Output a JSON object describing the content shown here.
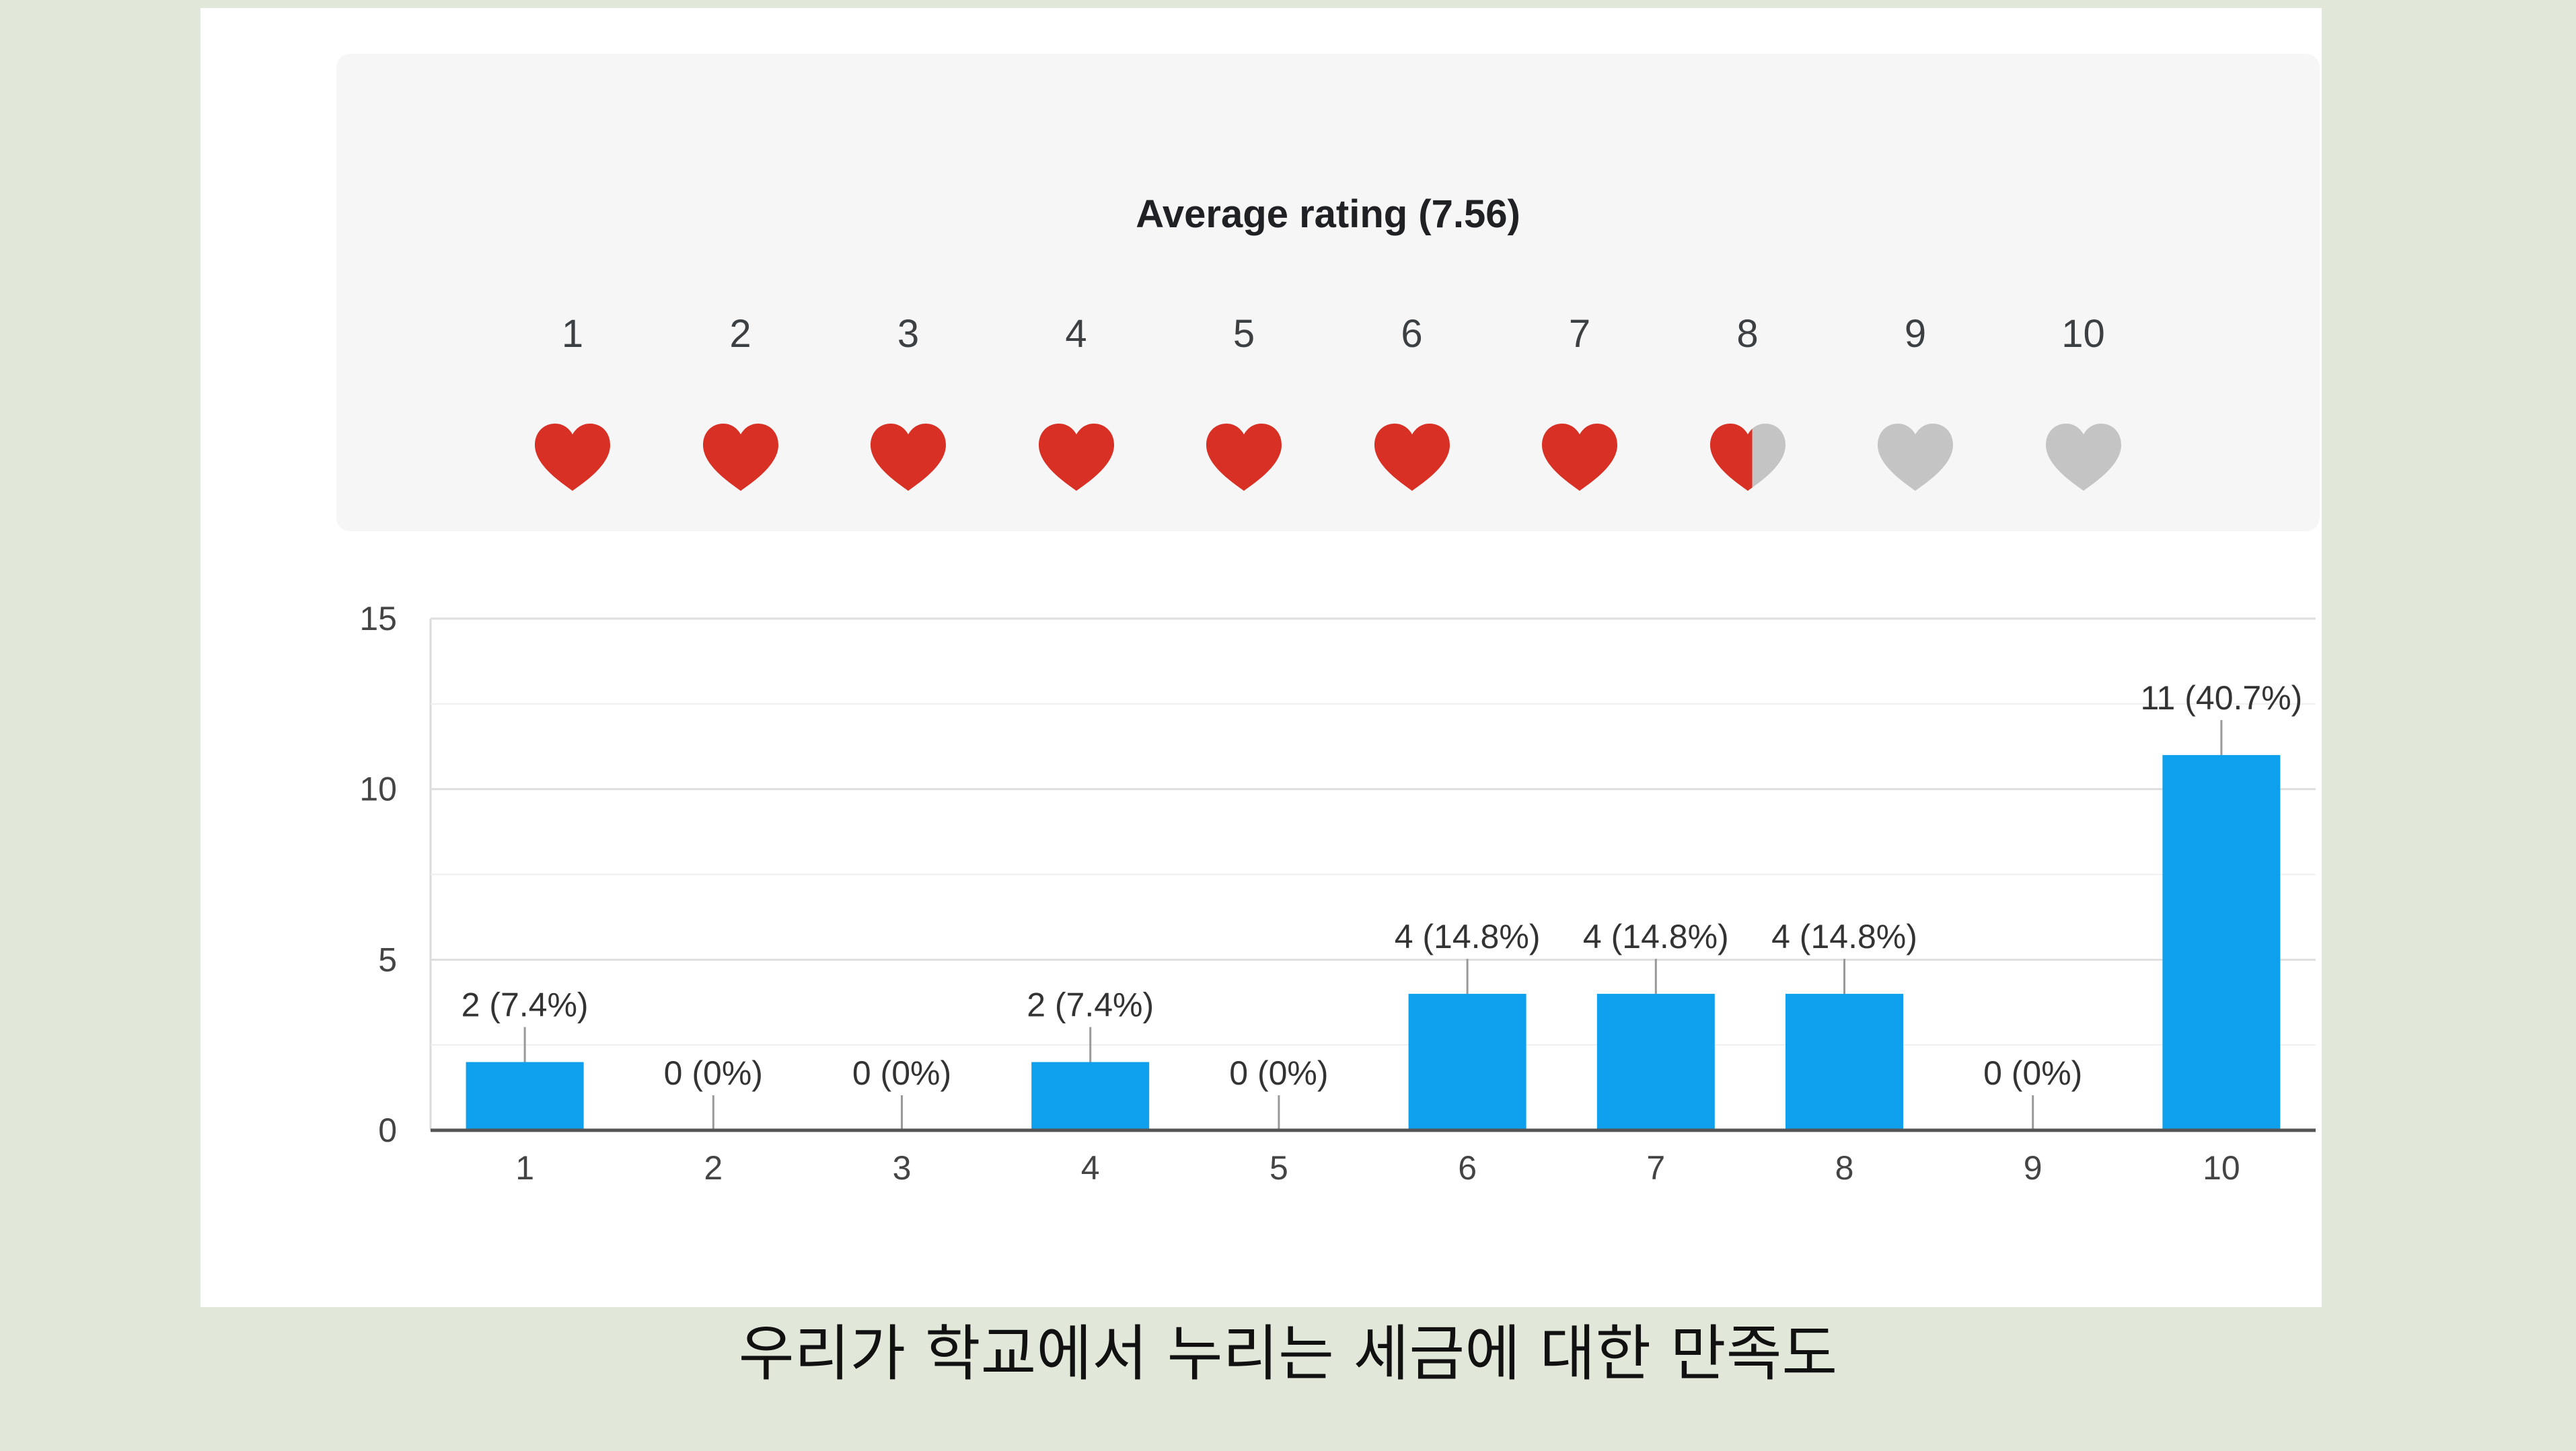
{
  "rating_widget": {
    "title": "Average rating (7.56)",
    "average": 7.56,
    "scale": [
      "1",
      "2",
      "3",
      "4",
      "5",
      "6",
      "7",
      "8",
      "9",
      "10"
    ],
    "icon": "heart-icon",
    "filled_color": "#d93025",
    "empty_color": "#c4c4c4"
  },
  "chart_data": {
    "type": "bar",
    "categories": [
      "1",
      "2",
      "3",
      "4",
      "5",
      "6",
      "7",
      "8",
      "9",
      "10"
    ],
    "values": [
      2,
      0,
      0,
      2,
      0,
      4,
      4,
      4,
      0,
      11
    ],
    "labels": [
      "2 (7.4%)",
      "0 (0%)",
      "0 (0%)",
      "2 (7.4%)",
      "0 (0%)",
      "4 (14.8%)",
      "4 (14.8%)",
      "4 (14.8%)",
      "0 (0%)",
      "11 (40.7%)"
    ],
    "yticks": [
      "0",
      "5",
      "10",
      "15"
    ],
    "ylim": [
      0,
      15
    ],
    "grid": true,
    "bar_color": "#0ea0ec"
  },
  "caption": "우리가 학교에서 누리는 세금에 대한 만족도"
}
